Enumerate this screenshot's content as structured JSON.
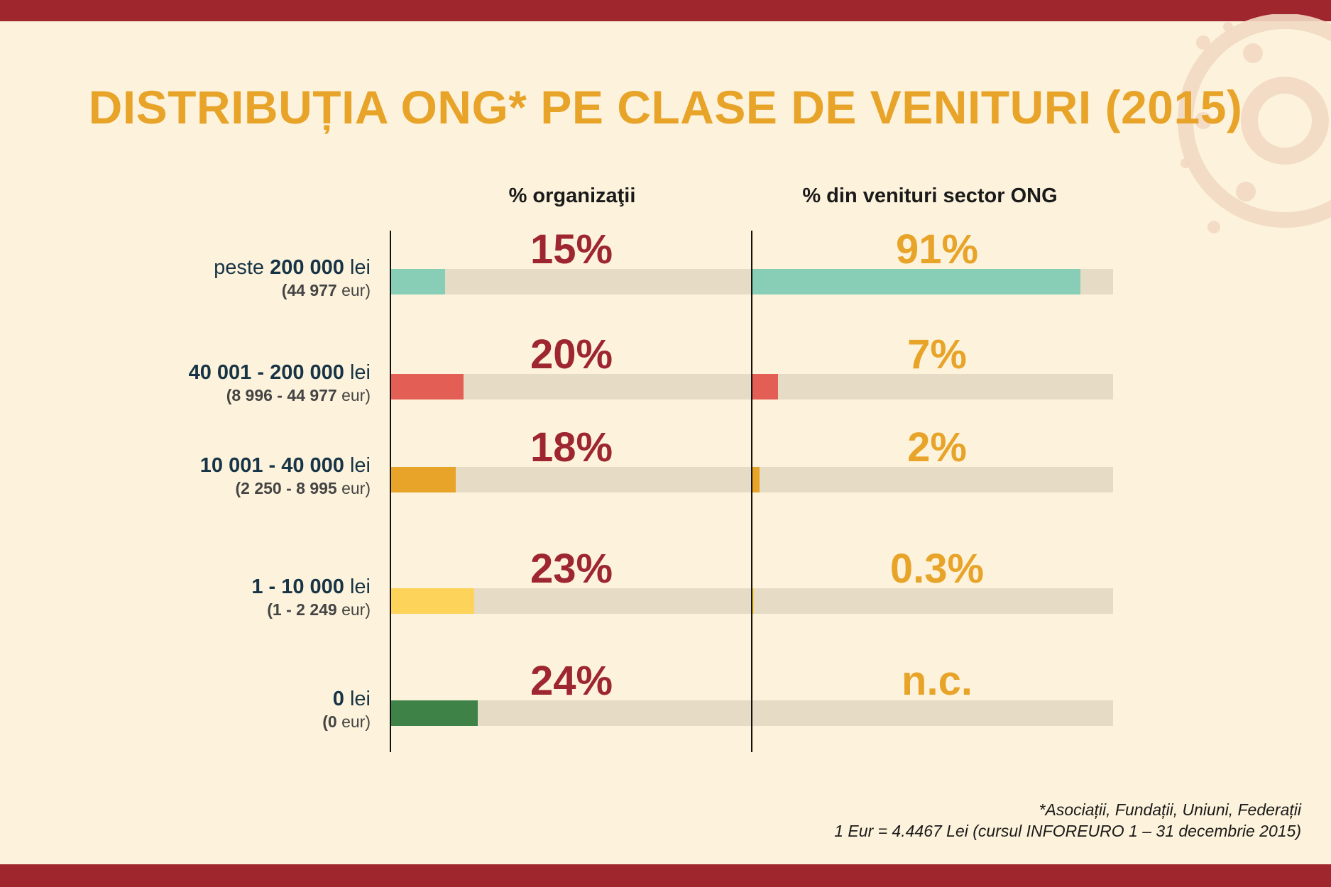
{
  "title": "DISTRIBUȚIA ONG* PE CLASE DE VENITURI (2015)",
  "colors": {
    "band": "#A0262E",
    "title": "#E8A329",
    "org_pct": "#9E2630",
    "inc_pct": "#E8A329",
    "track": "#E6DCC6"
  },
  "chart_data": {
    "type": "bar",
    "columns": [
      "% organizaţii",
      "% din venituri sector ONG"
    ],
    "categories": [
      {
        "main_prefix": "peste ",
        "main_bold": "200 000",
        "main_suffix": " lei",
        "sub_bold": "(44 977",
        "sub_light": " eur)",
        "color": "#88CDB6"
      },
      {
        "main_prefix": "",
        "main_bold": "40 001 - 200 000",
        "main_suffix": " lei",
        "sub_bold": "(8 996 - 44 977",
        "sub_light": " eur)",
        "color": "#E35F55"
      },
      {
        "main_prefix": "",
        "main_bold": "10 001 - 40 000",
        "main_suffix": " lei",
        "sub_bold": "(2 250 - 8 995",
        "sub_light": " eur)",
        "color": "#E8A329"
      },
      {
        "main_prefix": "",
        "main_bold": "1 - 10 000",
        "main_suffix": " lei",
        "sub_bold": "(1 - 2 249",
        "sub_light": " eur)",
        "color": "#FDD35A"
      },
      {
        "main_prefix": "",
        "main_bold": "0",
        "main_suffix": " lei",
        "sub_bold": "(0",
        "sub_light": " eur)",
        "color": "#3E8248"
      }
    ],
    "series": [
      {
        "name": "% organizaţii",
        "values": [
          15,
          20,
          18,
          23,
          24
        ],
        "labels": [
          "15%",
          "20%",
          "18%",
          "23%",
          "24%"
        ]
      },
      {
        "name": "% din venituri sector ONG",
        "values": [
          91,
          7,
          2,
          0.3,
          null
        ],
        "labels": [
          "91%",
          "7%",
          "2%",
          "0.3%",
          "n.c."
        ]
      }
    ],
    "ylim": [
      0,
      100
    ]
  },
  "notes": {
    "line1": "*Asociații, Fundații, Uniuni, Federații",
    "line2": "1 Eur = 4.4467 Lei (cursul INFOREURO 1 – 31 decembrie 2015)"
  }
}
